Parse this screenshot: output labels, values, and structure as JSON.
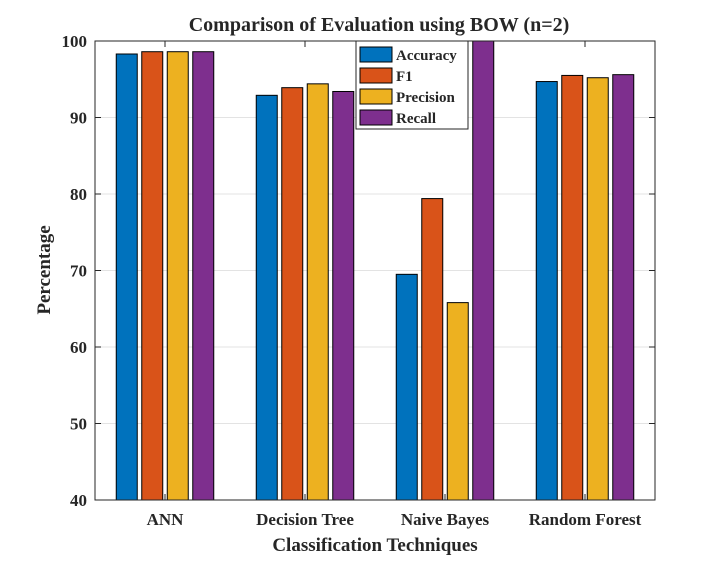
{
  "chart_data": {
    "type": "bar",
    "title": "Comparison of Evaluation using BOW (n=2)",
    "xlabel": "Classification Techniques",
    "ylabel": "Percentage",
    "ylim": [
      40,
      100
    ],
    "yticks": [
      40,
      50,
      60,
      70,
      80,
      90,
      100
    ],
    "grid": true,
    "legend_position": "top-center",
    "categories": [
      "ANN",
      "Decision Tree",
      "Naive Bayes",
      "Random Forest"
    ],
    "series": [
      {
        "name": "Accuracy",
        "color": "#0072BD",
        "values": [
          98.3,
          92.9,
          69.5,
          94.7
        ]
      },
      {
        "name": "F1",
        "color": "#D95319",
        "values": [
          98.6,
          93.9,
          79.4,
          95.5
        ]
      },
      {
        "name": "Precision",
        "color": "#EDB120",
        "values": [
          98.6,
          94.4,
          65.8,
          95.2
        ]
      },
      {
        "name": "Recall",
        "color": "#7E2F8E",
        "values": [
          98.6,
          93.4,
          100,
          95.6
        ]
      }
    ]
  }
}
